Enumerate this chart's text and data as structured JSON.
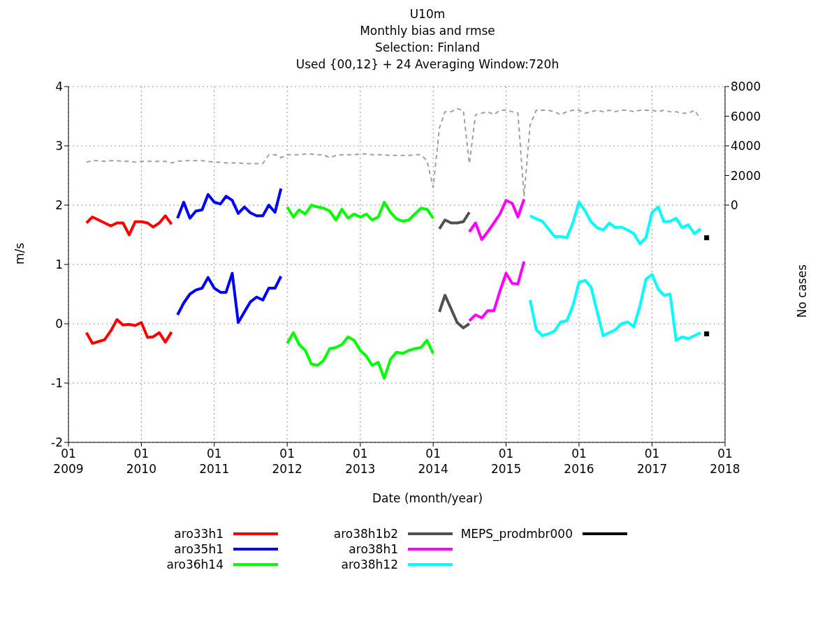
{
  "chart_data": {
    "type": "line",
    "title": "U10m",
    "subtitle": "Monthly bias and rmse\nSelection: Finland\nUsed {00,12} + 24  Averaging Window:720h",
    "xlabel": "Date (month/year)",
    "ylabel": "m/s",
    "y2label": "No cases",
    "xlim": [
      "2009-01",
      "2018-01"
    ],
    "xticks": [
      {
        "value": "2009-01",
        "label": "01\n2009"
      },
      {
        "value": "2010-01",
        "label": "01\n2010"
      },
      {
        "value": "2011-01",
        "label": "01\n2011"
      },
      {
        "value": "2012-01",
        "label": "01\n2012"
      },
      {
        "value": "2013-01",
        "label": "01\n2013"
      },
      {
        "value": "2014-01",
        "label": "01\n2014"
      },
      {
        "value": "2015-01",
        "label": "01\n2015"
      },
      {
        "value": "2016-01",
        "label": "01\n2016"
      },
      {
        "value": "2017-01",
        "label": "01\n2017"
      },
      {
        "value": "2018-01",
        "label": "01\n2018"
      }
    ],
    "ylim": [
      -2,
      4
    ],
    "yticks": [
      -2,
      -1,
      0,
      1,
      2,
      3,
      4
    ],
    "y2lim": [
      -16000,
      8000
    ],
    "y2ticks": [
      0,
      2000,
      4000,
      6000,
      8000
    ],
    "grid": true,
    "legend": "bottom",
    "marker": "none",
    "line_style": "solid",
    "series": [
      {
        "name": "aro33h1",
        "color": "#ff0000",
        "x": [
          "2009-04",
          "2009-05",
          "2009-06",
          "2009-07",
          "2009-08",
          "2009-09",
          "2009-10",
          "2009-11",
          "2009-12",
          "2010-01",
          "2010-02",
          "2010-03",
          "2010-04",
          "2010-05",
          "2010-06"
        ],
        "values": [
          1.7,
          1.8,
          1.75,
          1.7,
          1.65,
          1.7,
          1.7,
          1.5,
          1.72,
          1.72,
          1.7,
          1.63,
          1.7,
          1.82,
          1.68
        ]
      },
      {
        "color": "#ff0000",
        "x": [
          "2009-04",
          "2009-05",
          "2009-06",
          "2009-07",
          "2009-08",
          "2009-09",
          "2009-10",
          "2009-11",
          "2009-12",
          "2010-01",
          "2010-02",
          "2010-03",
          "2010-04",
          "2010-05",
          "2010-06"
        ],
        "values": [
          -0.15,
          -0.33,
          -0.3,
          -0.27,
          -0.12,
          0.07,
          -0.02,
          -0.01,
          -0.03,
          0.02,
          -0.23,
          -0.22,
          -0.15,
          -0.31,
          -0.14
        ]
      },
      {
        "name": "aro35h1",
        "color": "#0000ff",
        "x": [
          "2010-07",
          "2010-08",
          "2010-09",
          "2010-10",
          "2010-11",
          "2010-12",
          "2011-01",
          "2011-02",
          "2011-03",
          "2011-04",
          "2011-05",
          "2011-06",
          "2011-07",
          "2011-08",
          "2011-09",
          "2011-10",
          "2011-11",
          "2011-12"
        ],
        "values": [
          1.78,
          2.05,
          1.78,
          1.9,
          1.92,
          2.18,
          2.05,
          2.02,
          2.15,
          2.08,
          1.86,
          1.97,
          1.87,
          1.82,
          1.82,
          2.0,
          1.88,
          2.28
        ]
      },
      {
        "color": "#0000ff",
        "x": [
          "2010-07",
          "2010-08",
          "2010-09",
          "2010-10",
          "2010-11",
          "2010-12",
          "2011-01",
          "2011-02",
          "2011-03",
          "2011-04",
          "2011-05",
          "2011-06",
          "2011-07",
          "2011-08",
          "2011-09",
          "2011-10",
          "2011-11",
          "2011-12"
        ],
        "values": [
          0.15,
          0.35,
          0.5,
          0.57,
          0.6,
          0.78,
          0.6,
          0.53,
          0.53,
          0.85,
          0.02,
          0.2,
          0.37,
          0.45,
          0.4,
          0.6,
          0.6,
          0.8
        ]
      },
      {
        "name": "aro36h14",
        "color": "#00ff00",
        "x": [
          "2012-01",
          "2012-02",
          "2012-03",
          "2012-04",
          "2012-05",
          "2012-06",
          "2012-07",
          "2012-08",
          "2012-09",
          "2012-10",
          "2012-11",
          "2012-12",
          "2013-01",
          "2013-02",
          "2013-03",
          "2013-04",
          "2013-05",
          "2013-06",
          "2013-07",
          "2013-08",
          "2013-09",
          "2013-10",
          "2013-11",
          "2013-12",
          "2014-01"
        ],
        "values": [
          1.97,
          1.8,
          1.92,
          1.85,
          2.0,
          1.97,
          1.95,
          1.9,
          1.75,
          1.93,
          1.78,
          1.85,
          1.8,
          1.85,
          1.75,
          1.8,
          2.05,
          1.88,
          1.77,
          1.73,
          1.75,
          1.85,
          1.95,
          1.93,
          1.78
        ]
      },
      {
        "color": "#00ff00",
        "x": [
          "2012-01",
          "2012-02",
          "2012-03",
          "2012-04",
          "2012-05",
          "2012-06",
          "2012-07",
          "2012-08",
          "2012-09",
          "2012-10",
          "2012-11",
          "2012-12",
          "2013-01",
          "2013-02",
          "2013-03",
          "2013-04",
          "2013-05",
          "2013-06",
          "2013-07",
          "2013-08",
          "2013-09",
          "2013-10",
          "2013-11",
          "2013-12",
          "2014-01"
        ],
        "values": [
          -0.33,
          -0.15,
          -0.35,
          -0.45,
          -0.68,
          -0.7,
          -0.62,
          -0.42,
          -0.4,
          -0.35,
          -0.22,
          -0.28,
          -0.45,
          -0.55,
          -0.7,
          -0.65,
          -0.92,
          -0.6,
          -0.48,
          -0.5,
          -0.45,
          -0.42,
          -0.4,
          -0.28,
          -0.5
        ]
      },
      {
        "name": "aro38h1b2",
        "color": "#505050",
        "x": [
          "2014-02",
          "2014-03",
          "2014-04",
          "2014-05",
          "2014-06",
          "2014-07"
        ],
        "values": [
          1.6,
          1.75,
          1.7,
          1.7,
          1.72,
          1.88
        ]
      },
      {
        "color": "#505050",
        "x": [
          "2014-02",
          "2014-03",
          "2014-04",
          "2014-05",
          "2014-06",
          "2014-07"
        ],
        "values": [
          0.2,
          0.48,
          0.25,
          0.02,
          -0.07,
          0.0
        ]
      },
      {
        "name": "aro38h1",
        "color": "#ff00ff",
        "x": [
          "2014-07",
          "2014-08",
          "2014-09",
          "2014-10",
          "2014-11",
          "2014-12",
          "2015-01",
          "2015-02",
          "2015-03",
          "2015-04"
        ],
        "values": [
          1.55,
          1.7,
          1.42,
          1.55,
          1.7,
          1.85,
          2.08,
          2.03,
          1.8,
          2.1
        ]
      },
      {
        "color": "#ff00ff",
        "x": [
          "2014-07",
          "2014-08",
          "2014-09",
          "2014-10",
          "2014-11",
          "2014-12",
          "2015-01",
          "2015-02",
          "2015-03",
          "2015-04"
        ],
        "values": [
          0.05,
          0.15,
          0.1,
          0.22,
          0.22,
          0.55,
          0.85,
          0.68,
          0.67,
          1.05
        ]
      },
      {
        "name": "aro38h12",
        "color": "#00ffff",
        "x": [
          "2015-05",
          "2015-06",
          "2015-07",
          "2015-08",
          "2015-09",
          "2015-10",
          "2015-11",
          "2015-12",
          "2016-01",
          "2016-02",
          "2016-03",
          "2016-04",
          "2016-05",
          "2016-06",
          "2016-07",
          "2016-08",
          "2016-09",
          "2016-10",
          "2016-11",
          "2016-12",
          "2017-01",
          "2017-02",
          "2017-03",
          "2017-04",
          "2017-05",
          "2017-06",
          "2017-07",
          "2017-08",
          "2017-09"
        ],
        "values": [
          1.82,
          1.77,
          1.73,
          1.6,
          1.47,
          1.47,
          1.45,
          1.7,
          2.05,
          1.9,
          1.72,
          1.62,
          1.58,
          1.7,
          1.62,
          1.63,
          1.58,
          1.52,
          1.35,
          1.45,
          1.88,
          1.97,
          1.72,
          1.73,
          1.78,
          1.62,
          1.67,
          1.52,
          1.6
        ]
      },
      {
        "color": "#00ffff",
        "x": [
          "2015-05",
          "2015-06",
          "2015-07",
          "2015-08",
          "2015-09",
          "2015-10",
          "2015-11",
          "2015-12",
          "2016-01",
          "2016-02",
          "2016-03",
          "2016-04",
          "2016-05",
          "2016-06",
          "2016-07",
          "2016-08",
          "2016-09",
          "2016-10",
          "2016-11",
          "2016-12",
          "2017-01",
          "2017-02",
          "2017-03",
          "2017-04",
          "2017-05",
          "2017-06",
          "2017-07",
          "2017-08",
          "2017-09"
        ],
        "values": [
          0.4,
          -0.1,
          -0.2,
          -0.17,
          -0.12,
          0.03,
          0.05,
          0.3,
          0.7,
          0.73,
          0.62,
          0.2,
          -0.2,
          -0.15,
          -0.1,
          0.0,
          0.03,
          -0.05,
          0.3,
          0.75,
          0.83,
          0.58,
          0.48,
          0.5,
          -0.28,
          -0.22,
          -0.25,
          -0.2,
          -0.15
        ]
      },
      {
        "name": "MEPS_prodmbr000",
        "color": "#000000",
        "type": "scatter",
        "marker": "square",
        "x": [
          "2017-10"
        ],
        "values": [
          1.45
        ]
      },
      {
        "color": "#000000",
        "type": "scatter",
        "marker": "square",
        "x": [
          "2017-10"
        ],
        "values": [
          -0.17
        ]
      },
      {
        "color": "#a0a0a0",
        "axis": "y2",
        "line_style": "dashed",
        "x": [
          "2009-04",
          "2009-05",
          "2009-06",
          "2009-07",
          "2009-08",
          "2009-09",
          "2009-10",
          "2009-11",
          "2009-12",
          "2010-01",
          "2010-02",
          "2010-03",
          "2010-04",
          "2010-05",
          "2010-06",
          "2010-07",
          "2010-08",
          "2010-09",
          "2010-10",
          "2010-11",
          "2010-12",
          "2011-01",
          "2011-02",
          "2011-03",
          "2011-04",
          "2011-05",
          "2011-06",
          "2011-07",
          "2011-08",
          "2011-09",
          "2011-10",
          "2011-11",
          "2011-12",
          "2012-01",
          "2012-02",
          "2012-03",
          "2012-04",
          "2012-05",
          "2012-06",
          "2012-07",
          "2012-08",
          "2012-09",
          "2012-10",
          "2012-11",
          "2012-12",
          "2013-01",
          "2013-02",
          "2013-03",
          "2013-04",
          "2013-05",
          "2013-06",
          "2013-07",
          "2013-08",
          "2013-09",
          "2013-10",
          "2013-11",
          "2013-12",
          "2014-01",
          "2014-02",
          "2014-03",
          "2014-04",
          "2014-05",
          "2014-06",
          "2014-07",
          "2014-08",
          "2014-09",
          "2014-10",
          "2014-11",
          "2014-12",
          "2015-01",
          "2015-02",
          "2015-03",
          "2015-04",
          "2015-05",
          "2015-06",
          "2015-07",
          "2015-08",
          "2015-09",
          "2015-10",
          "2015-11",
          "2015-12",
          "2016-01",
          "2016-02",
          "2016-03",
          "2016-04",
          "2016-05",
          "2016-06",
          "2016-07",
          "2016-08",
          "2016-09",
          "2016-10",
          "2016-11",
          "2016-12",
          "2017-01",
          "2017-02",
          "2017-03",
          "2017-04",
          "2017-05",
          "2017-06",
          "2017-07",
          "2017-08",
          "2017-09"
        ],
        "values": [
          2900,
          3000,
          3000,
          2950,
          3000,
          3000,
          2950,
          2950,
          2900,
          2950,
          2950,
          2950,
          2950,
          2950,
          2850,
          2950,
          3000,
          3000,
          3000,
          3000,
          2950,
          2900,
          2900,
          2850,
          2850,
          2850,
          2800,
          2800,
          2800,
          2800,
          3400,
          3400,
          3200,
          3400,
          3400,
          3400,
          3450,
          3450,
          3400,
          3400,
          3200,
          3350,
          3400,
          3400,
          3400,
          3450,
          3450,
          3400,
          3400,
          3400,
          3350,
          3350,
          3350,
          3350,
          3400,
          3400,
          3000,
          1200,
          5200,
          6300,
          6300,
          6500,
          6400,
          2800,
          6100,
          6200,
          6300,
          6100,
          6400,
          6400,
          6300,
          6200,
          600,
          5400,
          6400,
          6400,
          6400,
          6300,
          6100,
          6300,
          6400,
          6400,
          6200,
          6300,
          6400,
          6300,
          6400,
          6300,
          6400,
          6400,
          6300,
          6400,
          6400,
          6400,
          6300,
          6400,
          6300,
          6300,
          6200,
          6200,
          6400,
          5800
        ]
      }
    ]
  }
}
